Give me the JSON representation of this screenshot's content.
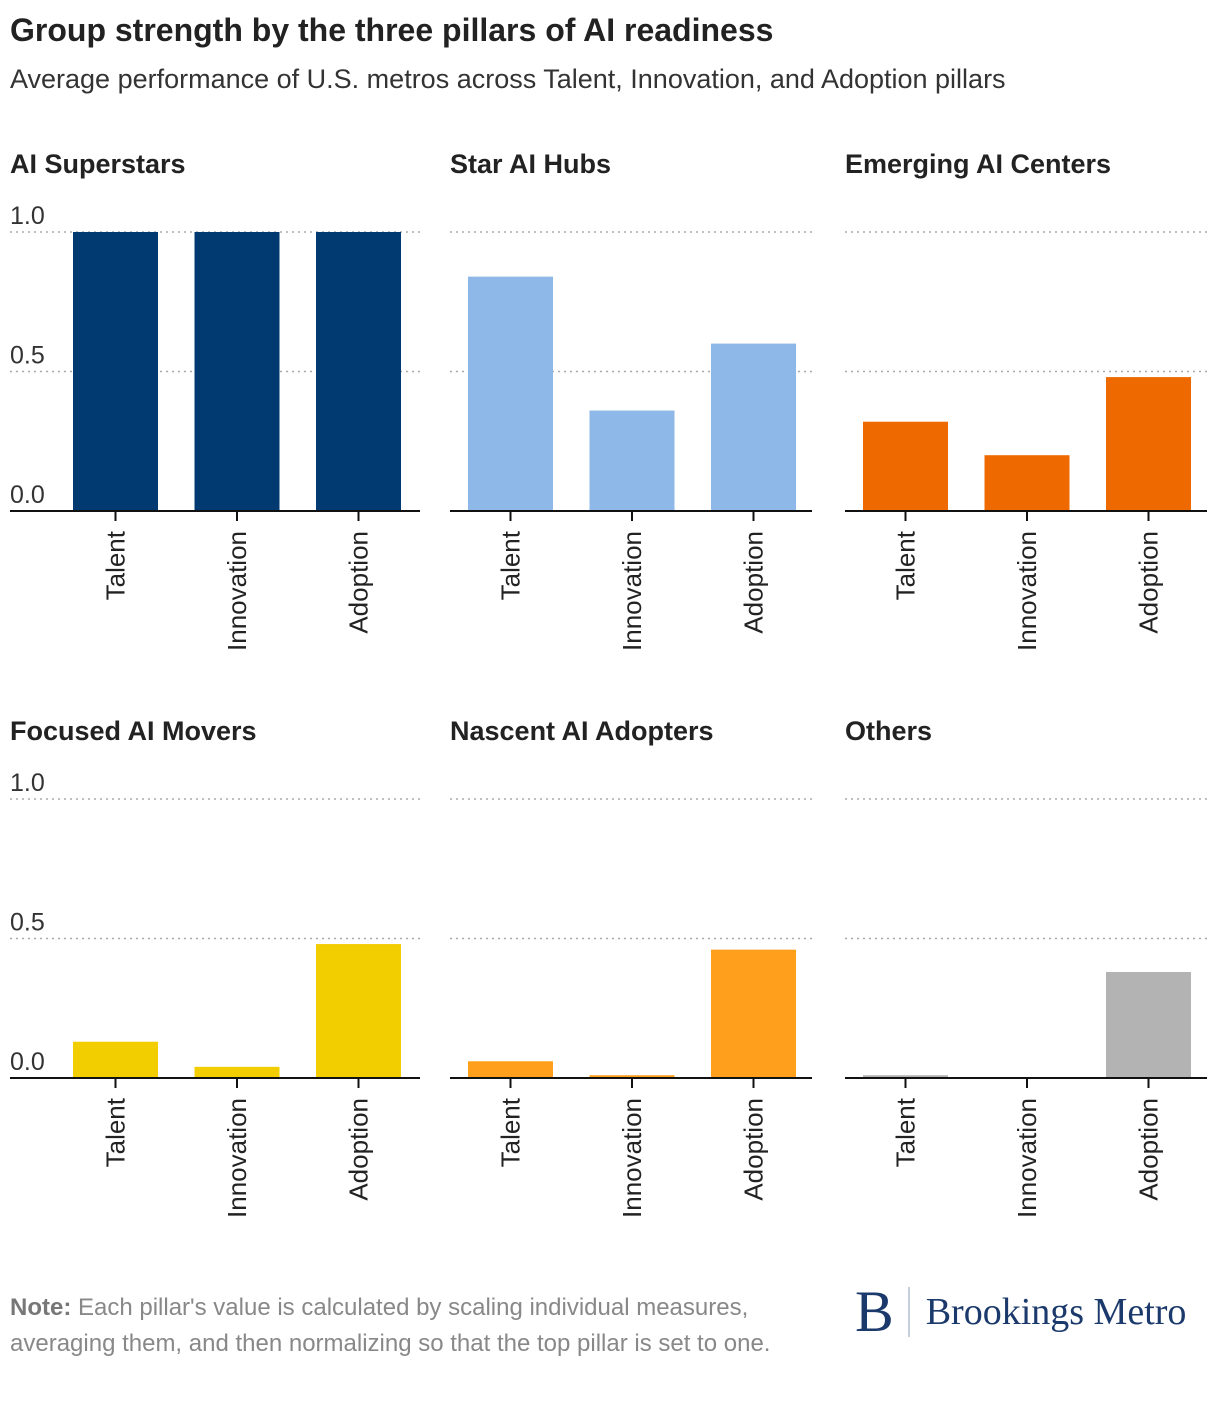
{
  "header": {
    "title": "Group strength by the three pillars of AI readiness",
    "subtitle": "Average performance of U.S. metros across Talent, Innovation, and Adoption pillars"
  },
  "chart_data": {
    "type": "bar",
    "layout": "small multiples, 2 rows x 3 columns",
    "categories": [
      "Talent",
      "Innovation",
      "Adoption"
    ],
    "ylim": [
      0,
      1
    ],
    "yticks": [
      "0.0",
      "0.5",
      "1.0"
    ],
    "grid": "dotted horizontal",
    "panels": [
      {
        "title": "AI Superstars",
        "color": "#003a70",
        "values": [
          1.0,
          1.0,
          1.0
        ]
      },
      {
        "title": "Star AI Hubs",
        "color": "#8db8e8",
        "values": [
          0.84,
          0.36,
          0.6
        ]
      },
      {
        "title": "Emerging AI Centers",
        "color": "#ee6a00",
        "values": [
          0.32,
          0.2,
          0.48
        ]
      },
      {
        "title": "Focused AI Movers",
        "color": "#f2cd00",
        "values": [
          0.13,
          0.04,
          0.48
        ]
      },
      {
        "title": "Nascent AI Adopters",
        "color": "#ff9f1c",
        "values": [
          0.06,
          0.01,
          0.46
        ]
      },
      {
        "title": "Others",
        "color": "#b3b3b3",
        "values": [
          0.01,
          0.0,
          0.38
        ]
      }
    ]
  },
  "footer": {
    "note_label": "Note:",
    "note_text": " Each pillar's value is calculated by scaling individual measures, averaging them, and then normalizing so that the top pillar is set to one.",
    "logo_mark": "B",
    "logo_text": "Brookings Metro"
  }
}
